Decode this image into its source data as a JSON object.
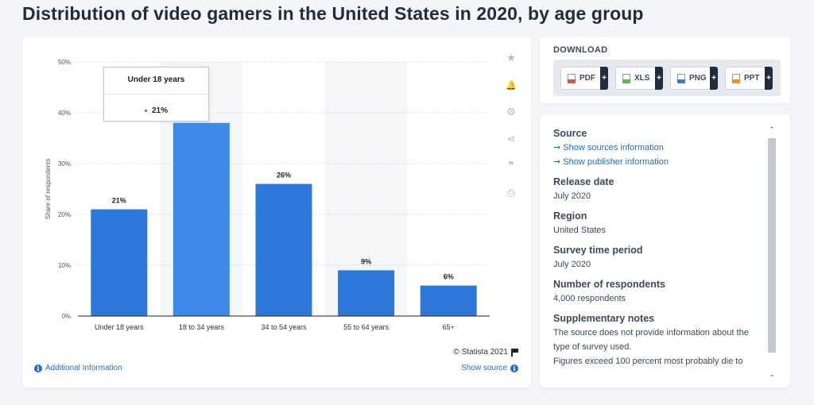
{
  "page": {
    "title": "Distribution of video gamers in the United States in 2020, by age group"
  },
  "chart_data": {
    "type": "bar",
    "categories": [
      "Under 18 years",
      "18 to 34 years",
      "34 to 54 years",
      "55 to 64 years",
      "65+"
    ],
    "values": [
      21,
      38,
      26,
      9,
      6
    ],
    "value_labels": [
      "21%",
      "",
      "26%",
      "9%",
      "6%"
    ],
    "ylabel": "Share of respondents",
    "xlabel": "",
    "ylim": [
      0,
      50
    ],
    "yticks": [
      "0%",
      "10%",
      "20%",
      "30%",
      "40%",
      "50%"
    ],
    "grid": true,
    "bar_color": "#2c77d9",
    "highlight_color": "#3e8ae8",
    "highlight_index": 1,
    "band_color": "#f5f6f8",
    "band_indices": [
      1,
      3
    ]
  },
  "tooltip": {
    "title": "Under 18 years",
    "value": "21%"
  },
  "chart_footer": {
    "copyright": "© Statista 2021",
    "additional_info": "Additional Information",
    "show_source": "Show source"
  },
  "side_tools": [
    {
      "name": "star-icon",
      "glyph": "★"
    },
    {
      "name": "bell-icon",
      "glyph": "🔔"
    },
    {
      "name": "gear-icon",
      "glyph": "⚙"
    },
    {
      "name": "share-icon",
      "glyph": "⋖"
    },
    {
      "name": "quote-icon",
      "glyph": "❞"
    },
    {
      "name": "print-icon",
      "glyph": "⎙"
    }
  ],
  "download": {
    "title": "DOWNLOAD",
    "buttons": [
      {
        "label": "PDF",
        "color": "#d9534f"
      },
      {
        "label": "XLS",
        "color": "#5cb85c"
      },
      {
        "label": "PNG",
        "color": "#3a7bd5"
      },
      {
        "label": "PPT",
        "color": "#f0902a"
      }
    ],
    "plus": "+"
  },
  "info": {
    "source_heading": "Source",
    "source_links": [
      "➞ Show sources information",
      "➞ Show publisher information"
    ],
    "sections": [
      {
        "heading": "Release date",
        "text": "July 2020"
      },
      {
        "heading": "Region",
        "text": "United States"
      },
      {
        "heading": "Survey time period",
        "text": "July 2020"
      },
      {
        "heading": "Number of respondents",
        "text": "4,000 respondents"
      },
      {
        "heading": "Supplementary notes",
        "text": "The source does not provide information about the type of survey used.\nFigures exceed 100 percent most probably die to"
      }
    ]
  }
}
